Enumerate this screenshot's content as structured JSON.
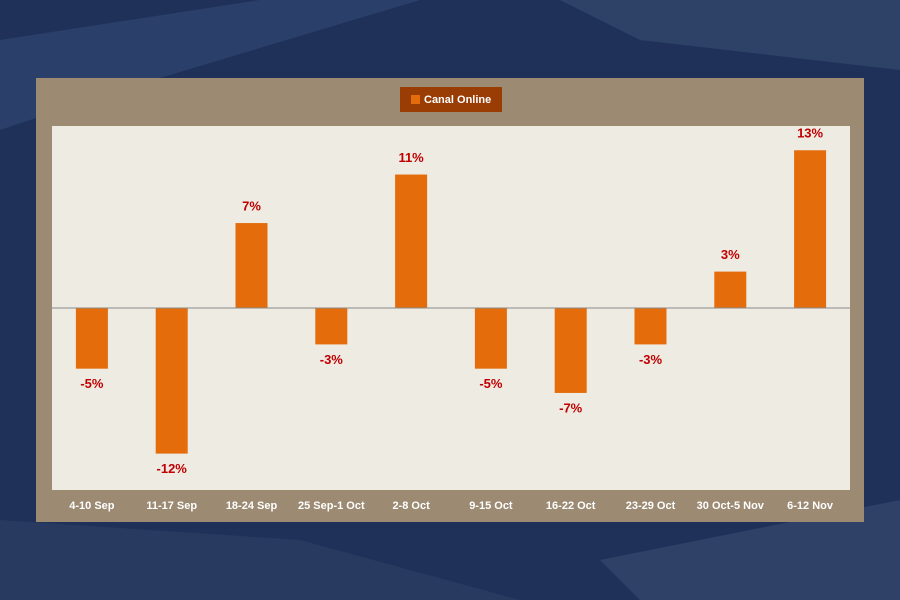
{
  "chart_data": {
    "type": "bar",
    "legend": "Canal Online",
    "categories": [
      "4-10 Sep",
      "11-17 Sep",
      "18-24 Sep",
      "25 Sep-1 Oct",
      "2-8 Oct",
      "9-15 Oct",
      "16-22 Oct",
      "23-29 Oct",
      "30 Oct-5 Nov",
      "6-12 Nov"
    ],
    "values": [
      -5,
      -12,
      7,
      -3,
      11,
      -5,
      -7,
      -3,
      3,
      13
    ],
    "value_labels": [
      "-5%",
      "-12%",
      "7%",
      "-3%",
      "11%",
      "-5%",
      "-7%",
      "-3%",
      "3%",
      "13%"
    ],
    "color": "#e46c0a",
    "ylim": [
      -15,
      15
    ]
  }
}
